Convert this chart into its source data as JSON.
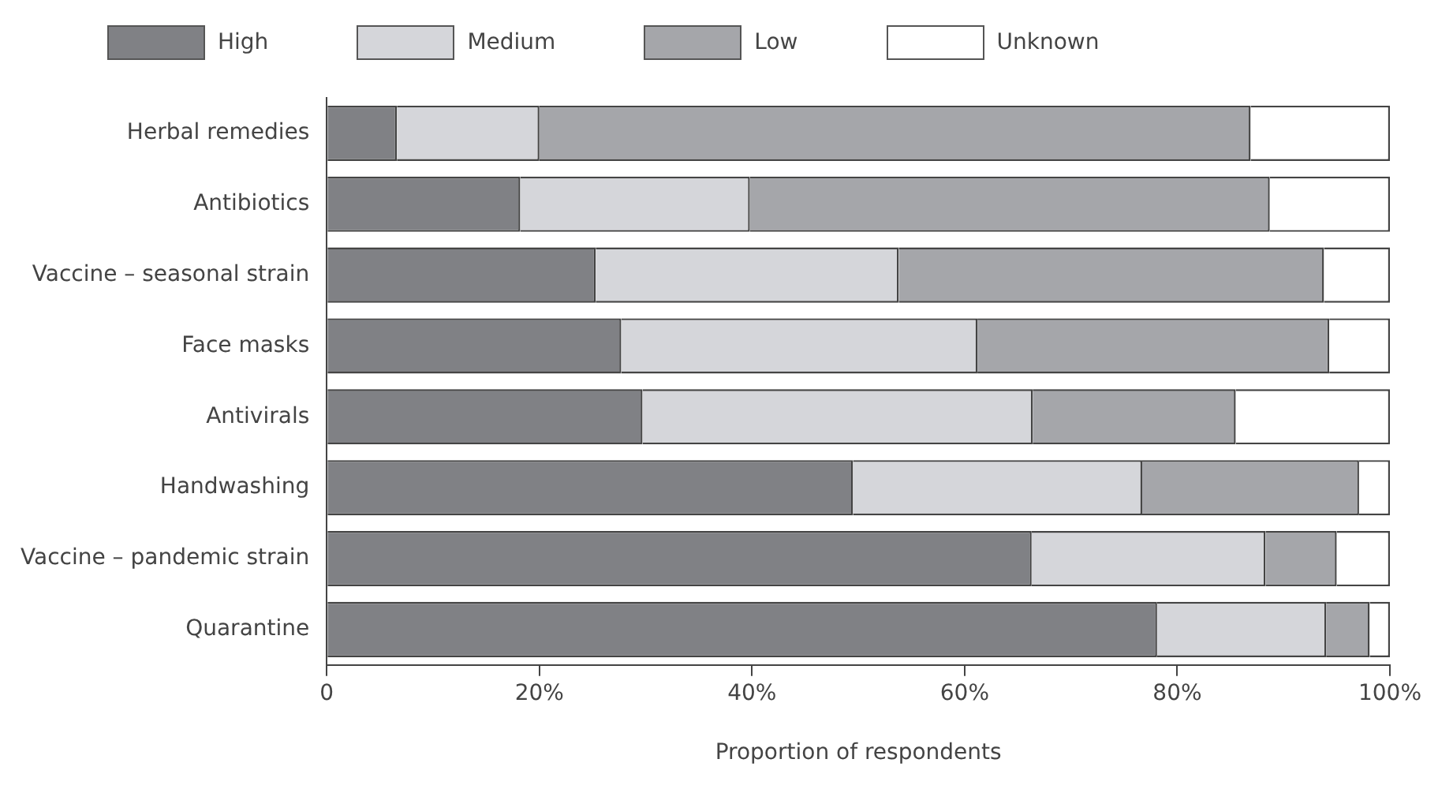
{
  "chart_data": {
    "type": "bar",
    "orientation": "horizontal",
    "stacked": true,
    "categories": [
      "Herbal remedies",
      "Antibiotics",
      "Vaccine – seasonal strain",
      "Face masks",
      "Antivirals",
      "Handwashing",
      "Vaccine – pandemic strain",
      "Quarantine"
    ],
    "series": [
      {
        "name": "High",
        "color": "#808185",
        "values": [
          6.6,
          18.2,
          25.3,
          27.7,
          29.7,
          49.5,
          66.3,
          78.1
        ]
      },
      {
        "name": "Medium",
        "color": "#d5d6da",
        "values": [
          13.4,
          21.6,
          28.5,
          33.5,
          36.7,
          27.2,
          22.0,
          15.9
        ]
      },
      {
        "name": "Low",
        "color": "#a5a6aa",
        "values": [
          66.9,
          48.9,
          40.0,
          33.1,
          19.1,
          20.4,
          6.7,
          4.1
        ]
      },
      {
        "name": "Unknown",
        "color": "#ffffff",
        "values": [
          13.1,
          11.3,
          6.2,
          5.7,
          14.5,
          2.9,
          5.0,
          1.9
        ]
      }
    ],
    "xlabel": "Proportion of respondents",
    "xlim": [
      0,
      100
    ],
    "xticks": [
      0,
      {
        "value": 20,
        "label": "20%"
      },
      {
        "value": 40,
        "label": "40%"
      },
      {
        "value": 60,
        "label": "60%"
      },
      {
        "value": 80,
        "label": "80%"
      },
      {
        "value": 100,
        "label": "100%"
      }
    ],
    "grid": false,
    "legend": "top"
  }
}
